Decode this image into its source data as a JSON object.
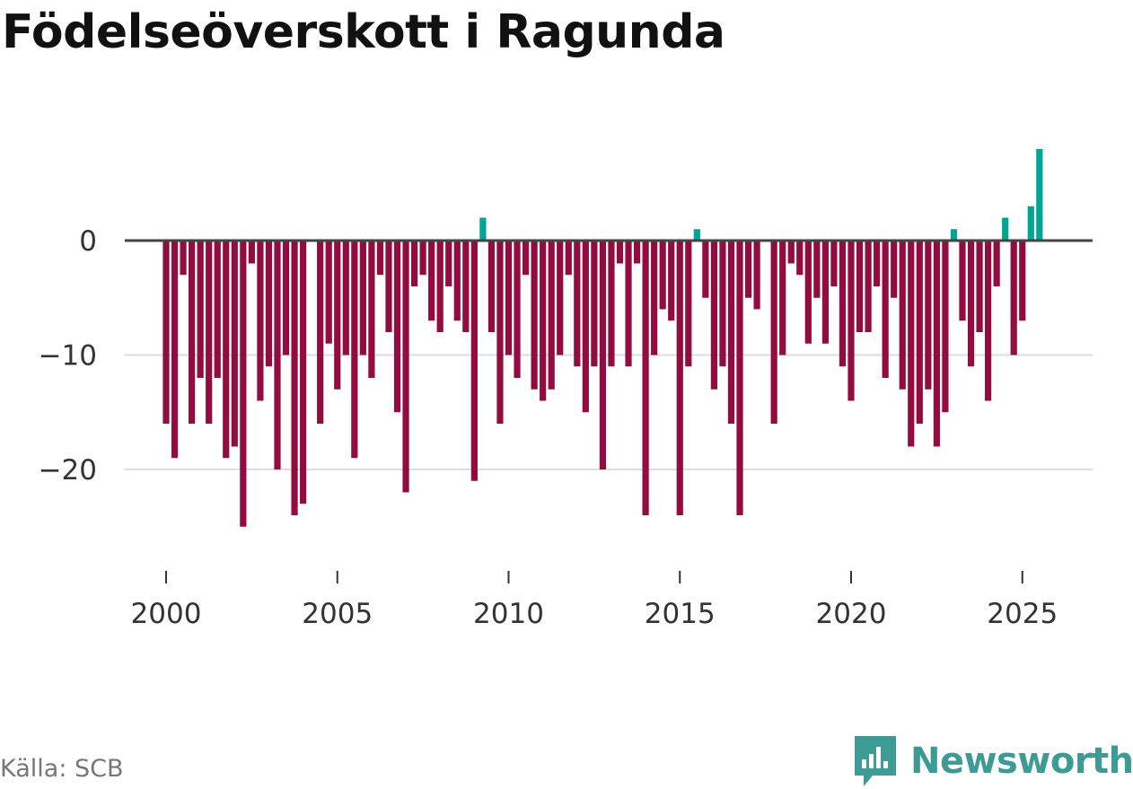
{
  "title": "Födelseöverskott i Ragunda",
  "source": "Källa: SCB",
  "brand": "Newsworthy",
  "colors": {
    "negative": "#930c3f",
    "positive": "#00a596",
    "brand": "#3e9a94"
  },
  "chart_data": {
    "type": "bar",
    "title": "Födelseöverskott i Ragunda",
    "xlabel": "",
    "ylabel": "",
    "frequency": "quarterly",
    "start": 2000.0,
    "xlim": [
      1999.5,
      2027.0
    ],
    "ylim": [
      -28,
      9
    ],
    "xticks": [
      2000,
      2005,
      2010,
      2015,
      2020,
      2025
    ],
    "yticks": [
      0,
      -10,
      -20
    ],
    "ytick_labels": [
      "0",
      "−10",
      "−20"
    ],
    "grid": true,
    "values": [
      -16,
      -19,
      -3,
      -16,
      -12,
      -16,
      -12,
      -19,
      -18,
      -25,
      -2,
      -14,
      -11,
      -20,
      -10,
      -24,
      -23,
      0,
      -16,
      -9,
      -13,
      -10,
      -19,
      -10,
      -12,
      -3,
      -8,
      -15,
      -22,
      -4,
      -3,
      -7,
      -8,
      -4,
      -7,
      -8,
      -21,
      2,
      -8,
      -16,
      -10,
      -12,
      -3,
      -13,
      -14,
      -13,
      -10,
      -3,
      -11,
      -15,
      -11,
      -20,
      -11,
      -2,
      -11,
      -2,
      -24,
      -10,
      -6,
      -7,
      -24,
      -11,
      1,
      -5,
      -13,
      -11,
      -16,
      -24,
      -5,
      -6,
      0,
      -16,
      -10,
      -2,
      -3,
      -9,
      -5,
      -9,
      -4,
      -11,
      -14,
      -8,
      -8,
      -4,
      -12,
      -5,
      -13,
      -18,
      -16,
      -13,
      -18,
      -15,
      1,
      -7,
      -11,
      -8,
      -14,
      -4,
      2,
      -10,
      -7,
      3,
      8
    ]
  }
}
